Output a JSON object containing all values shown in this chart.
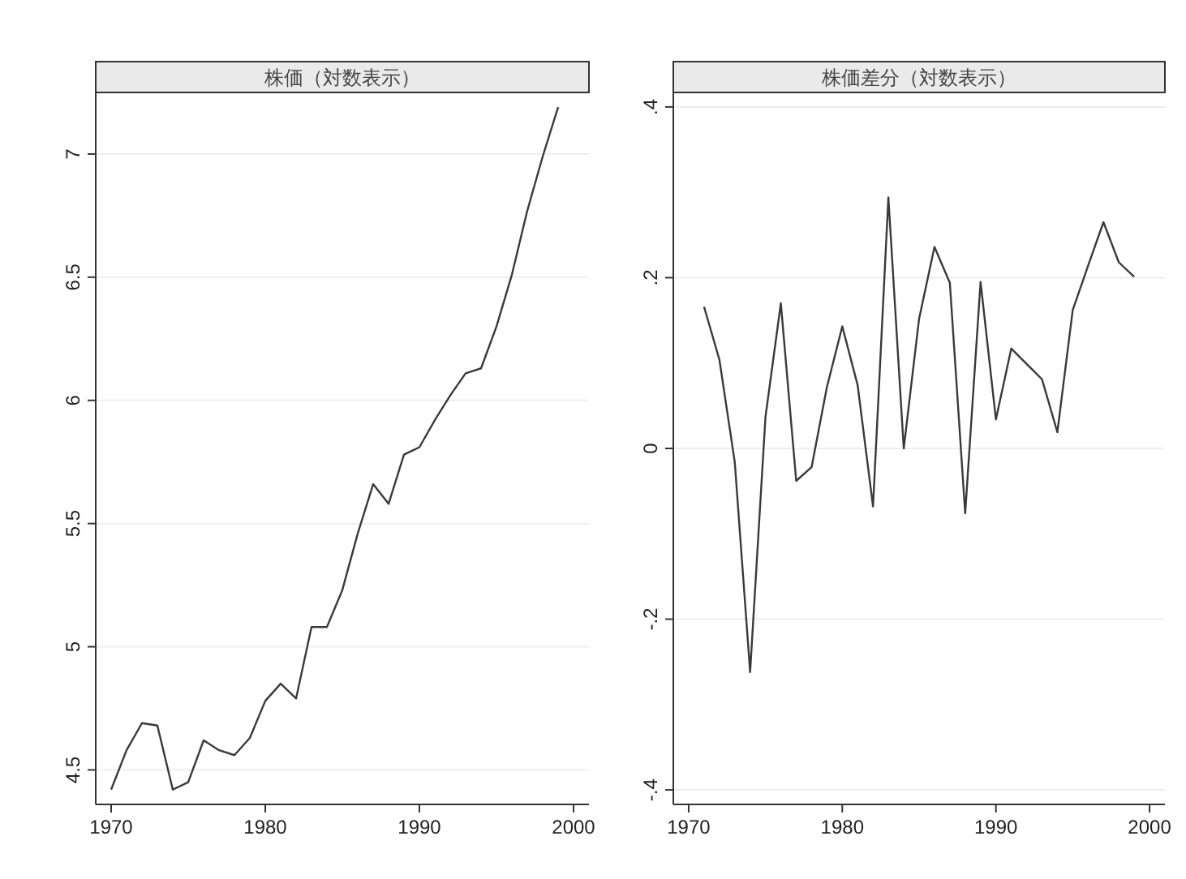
{
  "chart_data": [
    {
      "type": "line",
      "title": "株価（対数表示）",
      "color": "#3a3a3a",
      "grid": "y",
      "x": [
        1970,
        1971,
        1972,
        1973,
        1974,
        1975,
        1976,
        1977,
        1978,
        1979,
        1980,
        1981,
        1982,
        1983,
        1984,
        1985,
        1986,
        1987,
        1988,
        1989,
        1990,
        1991,
        1992,
        1993,
        1994,
        1995,
        1996,
        1997,
        1998,
        1999
      ],
      "values": [
        4.42,
        4.58,
        4.69,
        4.68,
        4.42,
        4.45,
        4.62,
        4.58,
        4.56,
        4.63,
        4.78,
        4.85,
        4.79,
        5.08,
        5.08,
        5.23,
        5.46,
        5.66,
        5.58,
        5.78,
        5.81,
        5.92,
        6.02,
        6.11,
        6.13,
        6.3,
        6.51,
        6.77,
        6.99,
        7.19
      ],
      "xlim": [
        1969,
        2001
      ],
      "ylim": [
        4.36,
        7.25
      ],
      "xticks": [
        1970,
        1980,
        1990,
        2000
      ],
      "yticks": [
        4.5,
        5,
        5.5,
        6,
        6.5,
        7
      ]
    },
    {
      "type": "line",
      "title": "株価差分（対数表示）",
      "color": "#3a3a3a",
      "grid": "y",
      "x": [
        1971,
        1972,
        1973,
        1974,
        1975,
        1976,
        1977,
        1978,
        1979,
        1980,
        1981,
        1982,
        1983,
        1984,
        1985,
        1986,
        1987,
        1988,
        1989,
        1990,
        1991,
        1992,
        1993,
        1994,
        1995,
        1996,
        1997,
        1998,
        1999
      ],
      "values": [
        0.166,
        0.104,
        -0.016,
        -0.262,
        0.037,
        0.17,
        -0.038,
        -0.022,
        0.072,
        0.143,
        0.074,
        -0.068,
        0.294,
        0.0,
        0.152,
        0.236,
        0.194,
        -0.076,
        0.195,
        0.034,
        0.117,
        0.099,
        0.081,
        0.019,
        0.162,
        0.214,
        0.265,
        0.218,
        0.201
      ],
      "xlim": [
        1969,
        2001
      ],
      "ylim": [
        -0.417,
        0.417
      ],
      "xticks": [
        1970,
        1980,
        1990,
        2000
      ],
      "yticks": [
        {
          "value": -0.4,
          "label": "-.4"
        },
        {
          "value": -0.2,
          "label": "-.2"
        },
        0,
        {
          "value": 0.2,
          "label": ".2"
        },
        {
          "value": 0.4,
          "label": ".4"
        }
      ]
    }
  ]
}
